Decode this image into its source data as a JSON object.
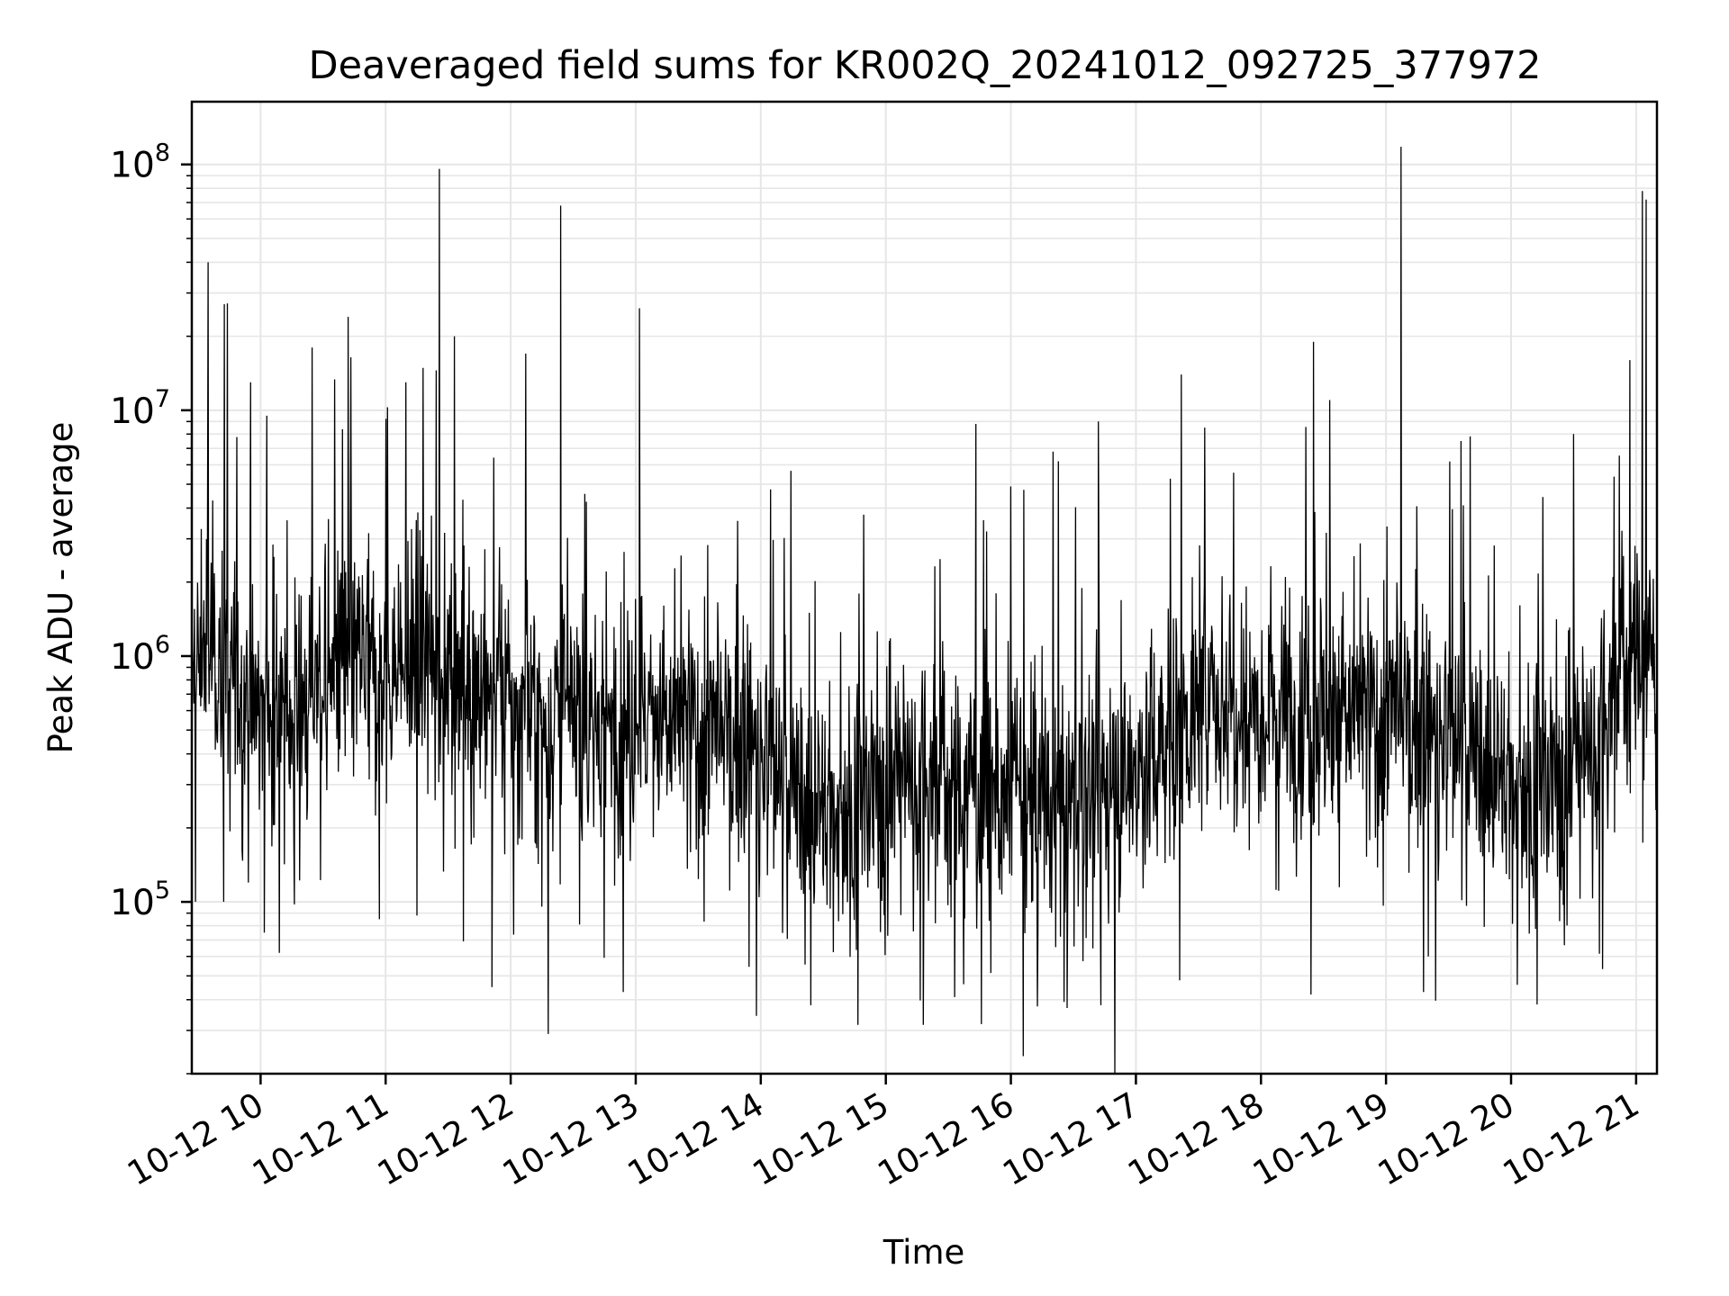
{
  "chart_data": {
    "type": "line",
    "title": "Deaveraged field sums for KR002Q_20241012_092725_377972",
    "xlabel": "Time",
    "ylabel": "Peak ADU - average",
    "yscale": "log",
    "xlim": [
      "2024-10-12T09:27",
      "2024-10-12T21:10"
    ],
    "ylim": [
      20000,
      180000000
    ],
    "grid": true,
    "x_ticks": [
      "10-12 10",
      "10-12 11",
      "10-12 12",
      "10-12 13",
      "10-12 14",
      "10-12 15",
      "10-12 16",
      "10-12 17",
      "10-12 18",
      "10-12 19",
      "10-12 20",
      "10-12 21"
    ],
    "y_ticks": [
      {
        "base": "10",
        "exp": "5",
        "value": 100000
      },
      {
        "base": "10",
        "exp": "6",
        "value": 1000000
      },
      {
        "base": "10",
        "exp": "7",
        "value": 10000000
      },
      {
        "base": "10",
        "exp": "8",
        "value": 100000000
      }
    ],
    "line_color": "#000000",
    "grid_color": "#e6e6e6",
    "x_time_hours": [
      9.45,
      9.5,
      9.55,
      9.6,
      9.65,
      9.7,
      9.75,
      9.8,
      9.85,
      9.9,
      9.95,
      10.0,
      10.1,
      10.2,
      10.3,
      10.4,
      10.5,
      10.6,
      10.7,
      10.8,
      10.9,
      11.0,
      11.1,
      11.2,
      11.3,
      11.4,
      11.5,
      11.6,
      11.7,
      11.8,
      11.9,
      12.0,
      12.1,
      12.2,
      12.3,
      12.4,
      12.5,
      12.6,
      12.7,
      12.8,
      12.9,
      13.0,
      13.1,
      13.2,
      13.3,
      13.4,
      13.5,
      13.6,
      13.7,
      13.8,
      13.9,
      14.0,
      14.1,
      14.2,
      14.3,
      14.4,
      14.5,
      14.6,
      14.7,
      14.8,
      14.9,
      15.0,
      15.1,
      15.2,
      15.3,
      15.4,
      15.5,
      15.6,
      15.7,
      15.8,
      15.9,
      16.0,
      16.1,
      16.2,
      16.3,
      16.4,
      16.5,
      16.6,
      16.7,
      16.8,
      16.9,
      17.0,
      17.1,
      17.2,
      17.3,
      17.4,
      17.5,
      17.6,
      17.7,
      17.8,
      17.9,
      18.0,
      18.1,
      18.2,
      18.3,
      18.4,
      18.5,
      18.6,
      18.7,
      18.8,
      18.9,
      19.0,
      19.1,
      19.2,
      19.3,
      19.4,
      19.5,
      19.6,
      19.7,
      19.8,
      19.9,
      20.0,
      20.1,
      20.2,
      20.3,
      20.4,
      20.5,
      20.6,
      20.7,
      20.8,
      20.9,
      21.0,
      21.05,
      21.1,
      21.15
    ],
    "baseline_values": [
      700000,
      900000,
      1200000,
      1100000,
      1000000,
      900000,
      800000,
      700000,
      700000,
      650000,
      600000,
      600000,
      600000,
      550000,
      600000,
      700000,
      800000,
      900000,
      900000,
      900000,
      850000,
      800000,
      850000,
      900000,
      900000,
      950000,
      950000,
      900000,
      800000,
      700000,
      650000,
      600000,
      600000,
      550000,
      550000,
      550000,
      550000,
      500000,
      500000,
      550000,
      550000,
      550000,
      550000,
      500000,
      500000,
      500000,
      500000,
      450000,
      450000,
      450000,
      450000,
      400000,
      330000,
      300000,
      260000,
      240000,
      230000,
      230000,
      240000,
      250000,
      270000,
      300000,
      320000,
      330000,
      330000,
      320000,
      300000,
      290000,
      280000,
      280000,
      270000,
      260000,
      250000,
      250000,
      250000,
      250000,
      260000,
      270000,
      280000,
      300000,
      320000,
      340000,
      370000,
      420000,
      500000,
      550000,
      600000,
      650000,
      650000,
      650000,
      650000,
      650000,
      650000,
      650000,
      620000,
      600000,
      600000,
      580000,
      560000,
      560000,
      560000,
      550000,
      540000,
      530000,
      500000,
      480000,
      450000,
      420000,
      380000,
      350000,
      320000,
      300000,
      300000,
      300000,
      300000,
      320000,
      350000,
      400000,
      500000,
      700000,
      900000,
      1000000,
      1100000,
      900000,
      850000
    ],
    "spikes": [
      {
        "t": 9.58,
        "v": 40000000
      },
      {
        "t": 9.71,
        "v": 27000000
      },
      {
        "t": 9.92,
        "v": 13000000
      },
      {
        "t": 10.05,
        "v": 9500000
      },
      {
        "t": 10.7,
        "v": 24000000
      },
      {
        "t": 11.43,
        "v": 96000000
      },
      {
        "t": 11.55,
        "v": 20000000
      },
      {
        "t": 12.12,
        "v": 17000000
      },
      {
        "t": 12.4,
        "v": 68000000
      },
      {
        "t": 13.03,
        "v": 26000000
      },
      {
        "t": 15.72,
        "v": 8800000
      },
      {
        "t": 16.38,
        "v": 6200000
      },
      {
        "t": 16.7,
        "v": 9000000
      },
      {
        "t": 17.55,
        "v": 8500000
      },
      {
        "t": 18.42,
        "v": 19000000
      },
      {
        "t": 18.55,
        "v": 11000000
      },
      {
        "t": 19.12,
        "v": 118000000
      },
      {
        "t": 19.6,
        "v": 7500000
      },
      {
        "t": 20.5,
        "v": 8000000
      },
      {
        "t": 20.95,
        "v": 16000000
      },
      {
        "t": 21.05,
        "v": 78000000
      },
      {
        "t": 21.08,
        "v": 72000000
      }
    ],
    "dips": [
      {
        "t": 10.03,
        "v": 75000
      },
      {
        "t": 10.15,
        "v": 62000
      },
      {
        "t": 10.95,
        "v": 85000
      },
      {
        "t": 11.25,
        "v": 88000
      },
      {
        "t": 11.85,
        "v": 45000
      },
      {
        "t": 12.3,
        "v": 29000
      },
      {
        "t": 12.9,
        "v": 43000
      },
      {
        "t": 14.4,
        "v": 38000
      },
      {
        "t": 15.55,
        "v": 41000
      },
      {
        "t": 16.45,
        "v": 37000
      },
      {
        "t": 16.72,
        "v": 38000
      },
      {
        "t": 17.35,
        "v": 48000
      },
      {
        "t": 18.4,
        "v": 42000
      },
      {
        "t": 19.3,
        "v": 43000
      },
      {
        "t": 20.05,
        "v": 46000
      }
    ]
  }
}
